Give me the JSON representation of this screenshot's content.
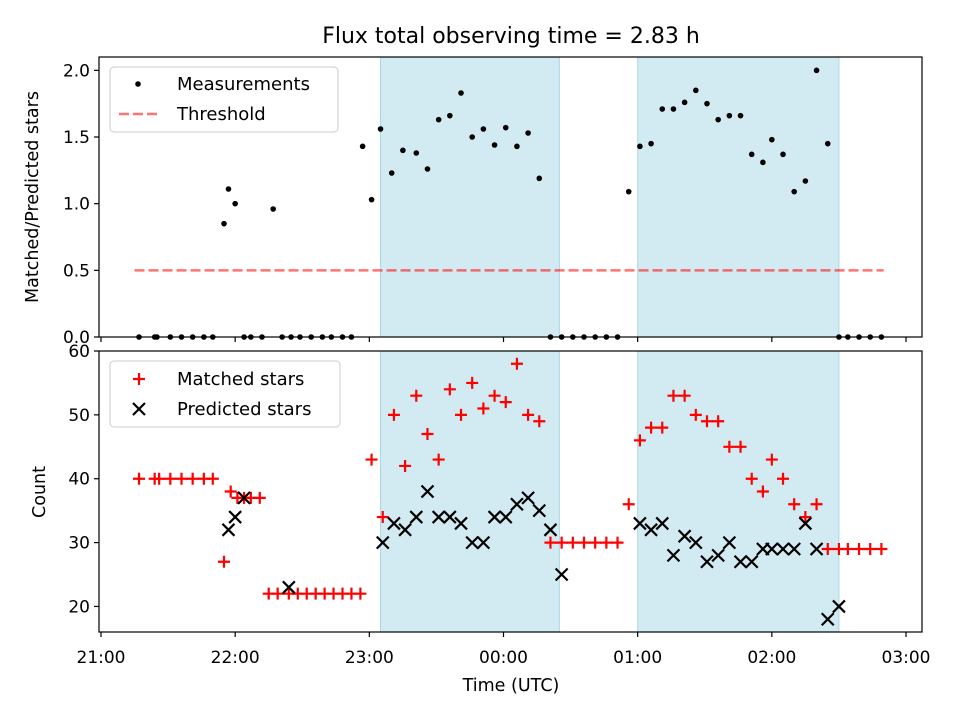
{
  "title": "Flux total observing time = 2.83 h",
  "colors": {
    "shade": "#add8e6",
    "measure": "#000000",
    "threshold": "#ff0000",
    "matched": "#ff0000",
    "predicted": "#000000"
  },
  "chart_data": [
    {
      "type": "scatter",
      "ylabel": "Matched/Predicted stars",
      "xlim": [
        "21:00",
        "03:00"
      ],
      "ylim": [
        0,
        2.1
      ],
      "yticks": [
        0.0,
        0.5,
        1.0,
        1.5,
        2.0
      ],
      "ytick_labels": [
        "0.0",
        "0.5",
        "1.0",
        "1.5",
        "2.0"
      ],
      "shaded_regions": [
        [
          "23:05",
          "00:25"
        ],
        [
          "01:00",
          "02:30"
        ]
      ],
      "legend": {
        "position": "upper-left",
        "entries": [
          "Measurements",
          "Threshold"
        ]
      },
      "threshold": {
        "name": "Threshold",
        "y": 0.5,
        "x_range": [
          "21:15",
          "02:50"
        ],
        "style": "dashed"
      },
      "series": [
        {
          "name": "Measurements",
          "marker": "dot",
          "x": [
            "21:17",
            "21:24",
            "21:25",
            "21:31",
            "21:36",
            "21:41",
            "21:46",
            "21:50",
            "21:55",
            "21:57",
            "22:00",
            "22:04",
            "22:07",
            "22:12",
            "22:17",
            "22:21",
            "22:25",
            "22:29",
            "22:34",
            "22:39",
            "22:43",
            "22:48",
            "22:52",
            "22:57",
            "23:01",
            "23:05",
            "23:10",
            "23:15",
            "23:21",
            "23:26",
            "23:31",
            "23:36",
            "23:41",
            "23:46",
            "23:51",
            "23:56",
            "00:01",
            "00:06",
            "00:11",
            "00:16",
            "00:21",
            "00:26",
            "00:31",
            "00:36",
            "00:41",
            "00:46",
            "00:51",
            "00:56",
            "01:01",
            "01:06",
            "01:11",
            "01:16",
            "01:21",
            "01:26",
            "01:31",
            "01:36",
            "01:41",
            "01:46",
            "01:51",
            "01:56",
            "02:00",
            "02:05",
            "02:10",
            "02:15",
            "02:20",
            "02:25",
            "02:30",
            "02:34",
            "02:39",
            "02:44",
            "02:49"
          ],
          "y": [
            0.0,
            0.0,
            0.0,
            0.0,
            0.0,
            0.0,
            0.0,
            0.0,
            0.85,
            1.11,
            1.0,
            0.0,
            0.0,
            0.0,
            0.96,
            0.0,
            0.0,
            0.0,
            0.0,
            0.0,
            0.0,
            0.0,
            0.0,
            1.43,
            1.03,
            1.56,
            1.23,
            1.4,
            1.38,
            1.26,
            1.63,
            1.66,
            1.83,
            1.5,
            1.56,
            1.44,
            1.57,
            1.43,
            1.53,
            1.19,
            0.0,
            0.0,
            0.0,
            0.0,
            0.0,
            0.0,
            0.0,
            1.09,
            1.43,
            1.45,
            1.71,
            1.71,
            1.76,
            1.85,
            1.75,
            1.63,
            1.66,
            1.66,
            1.37,
            1.31,
            1.48,
            1.37,
            1.09,
            1.17,
            2.0,
            1.45,
            0.0,
            0.0,
            0.0,
            0.0,
            0.0
          ]
        }
      ]
    },
    {
      "type": "scatter",
      "xlabel": "Time (UTC)",
      "ylabel": "Count",
      "xlim": [
        "21:00",
        "03:00"
      ],
      "ylim": [
        16,
        60
      ],
      "yticks": [
        20,
        30,
        40,
        50,
        60
      ],
      "ytick_labels": [
        "20",
        "30",
        "40",
        "50",
        "60"
      ],
      "xtick_labels": [
        "21:00",
        "22:00",
        "23:00",
        "00:00",
        "01:00",
        "02:00",
        "03:00"
      ],
      "shaded_regions": [
        [
          "23:05",
          "00:25"
        ],
        [
          "01:00",
          "02:30"
        ]
      ],
      "legend": {
        "position": "upper-left",
        "entries": [
          "Matched stars",
          "Predicted stars"
        ]
      },
      "series": [
        {
          "name": "Matched stars",
          "marker": "plus",
          "x": [
            "21:17",
            "21:24",
            "21:26",
            "21:31",
            "21:36",
            "21:41",
            "21:46",
            "21:50",
            "21:55",
            "21:58",
            "22:01",
            "22:04",
            "22:07",
            "22:11",
            "22:15",
            "22:19",
            "22:24",
            "22:28",
            "22:32",
            "22:36",
            "22:40",
            "22:44",
            "22:48",
            "22:52",
            "22:56",
            "23:01",
            "23:06",
            "23:11",
            "23:16",
            "23:21",
            "23:26",
            "23:31",
            "23:36",
            "23:41",
            "23:46",
            "23:51",
            "23:56",
            "00:01",
            "00:06",
            "00:11",
            "00:16",
            "00:21",
            "00:26",
            "00:31",
            "00:36",
            "00:41",
            "00:46",
            "00:51",
            "00:56",
            "01:01",
            "01:06",
            "01:11",
            "01:16",
            "01:21",
            "01:26",
            "01:31",
            "01:36",
            "01:41",
            "01:46",
            "01:51",
            "01:56",
            "02:00",
            "02:05",
            "02:10",
            "02:15",
            "02:20",
            "02:25",
            "02:30",
            "02:34",
            "02:39",
            "02:44",
            "02:49"
          ],
          "y": [
            40,
            40,
            40,
            40,
            40,
            40,
            40,
            40,
            27,
            38,
            37,
            37,
            37,
            37,
            22,
            22,
            22,
            22,
            22,
            22,
            22,
            22,
            22,
            22,
            22,
            43,
            34,
            50,
            42,
            53,
            47,
            43,
            54,
            50,
            55,
            51,
            53,
            52,
            58,
            50,
            49,
            30,
            30,
            30,
            30,
            30,
            30,
            30,
            36,
            46,
            48,
            48,
            53,
            53,
            50,
            49,
            49,
            45,
            45,
            40,
            38,
            43,
            40,
            36,
            34,
            36,
            29,
            29,
            29,
            29,
            29,
            29
          ]
        },
        {
          "name": "Predicted stars",
          "marker": "x",
          "x": [
            "21:57",
            "22:00",
            "22:04",
            "22:24",
            "23:06",
            "23:11",
            "23:16",
            "23:21",
            "23:26",
            "23:31",
            "23:36",
            "23:41",
            "23:46",
            "23:51",
            "23:56",
            "00:01",
            "00:06",
            "00:11",
            "00:16",
            "00:21",
            "00:26",
            "01:01",
            "01:06",
            "01:11",
            "01:16",
            "01:21",
            "01:26",
            "01:31",
            "01:36",
            "01:41",
            "01:46",
            "01:51",
            "01:56",
            "02:00",
            "02:05",
            "02:10",
            "02:15",
            "02:20",
            "02:25",
            "02:30"
          ],
          "y": [
            32,
            34,
            37,
            23,
            30,
            33,
            32,
            34,
            38,
            34,
            34,
            33,
            30,
            30,
            34,
            34,
            36,
            37,
            35,
            32,
            25,
            33,
            32,
            33,
            28,
            31,
            30,
            27,
            28,
            30,
            27,
            27,
            29,
            29,
            29,
            29,
            33,
            29,
            18,
            20
          ]
        }
      ]
    }
  ]
}
